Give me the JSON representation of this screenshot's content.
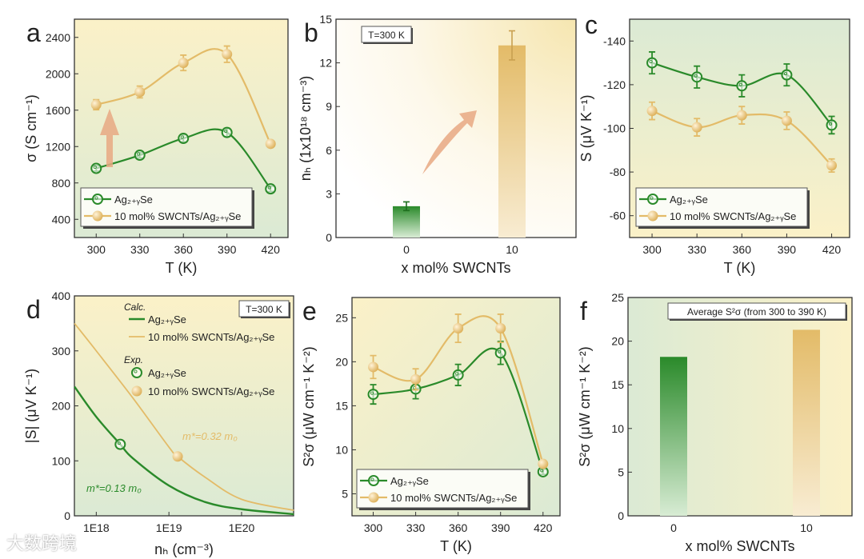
{
  "colors": {
    "green": "#2a8a2a",
    "yellow": "#e3bb68",
    "arrow": "#e8a882"
  },
  "watermark": "大数跨境",
  "chart_data": [
    {
      "panel": "a",
      "type": "line",
      "xlabel": "T (K)",
      "ylabel": "σ (S cm⁻¹)",
      "xlim": [
        285,
        432
      ],
      "ylim": [
        200,
        2600
      ],
      "xticks": [
        300,
        330,
        360,
        390,
        420
      ],
      "yticks": [
        400,
        800,
        1200,
        1600,
        2000,
        2400
      ],
      "x": [
        300,
        330,
        360,
        390,
        420
      ],
      "series": [
        {
          "name": "Ag2+ySe",
          "legend": "Ag₂₊ᵧSe",
          "values": [
            960,
            1105,
            1290,
            1355,
            735
          ],
          "err": [
            30,
            30,
            40,
            45,
            30
          ],
          "style": "open"
        },
        {
          "name": "10 mol% SWCNTs/Ag2+ySe",
          "legend": "10 mol% SWCNTs/Ag₂₊ᵧSe",
          "values": [
            1660,
            1800,
            2120,
            2215,
            1230
          ],
          "err": [
            55,
            65,
            85,
            90,
            25
          ],
          "style": "filled"
        }
      ]
    },
    {
      "panel": "b",
      "type": "bar",
      "xlabel": "x mol% SWCNTs",
      "ylabel": "nₕ (1x10¹⁸ cm⁻³)",
      "ylim": [
        0,
        15
      ],
      "yticks": [
        0,
        3,
        6,
        9,
        12,
        15
      ],
      "categories": [
        "0",
        "10"
      ],
      "values": [
        2.15,
        13.2
      ],
      "err": [
        0.3,
        1.0
      ],
      "annotation": "T=300 K"
    },
    {
      "panel": "c",
      "type": "line",
      "xlabel": "T (K)",
      "ylabel": "S (μV K⁻¹)",
      "xlim": [
        285,
        432
      ],
      "ylim": [
        -50,
        -150
      ],
      "xticks": [
        300,
        330,
        360,
        390,
        420
      ],
      "yticks": [
        -60,
        -80,
        -100,
        -120,
        -140
      ],
      "x": [
        300,
        330,
        360,
        390,
        420
      ],
      "series": [
        {
          "name": "Ag2+ySe",
          "legend": "Ag₂₊ᵧSe",
          "values": [
            -130,
            -123.5,
            -119.5,
            -124.5,
            -101.5
          ],
          "err": [
            5,
            5,
            5,
            5,
            4
          ],
          "style": "open"
        },
        {
          "name": "10 mol% SWCNTs/Ag2+ySe",
          "legend": "10 mol% SWCNTs/Ag₂₊ᵧSe",
          "values": [
            -108,
            -100.5,
            -106,
            -103.5,
            -83
          ],
          "err": [
            4,
            4,
            4,
            4,
            3
          ],
          "style": "filled"
        }
      ]
    },
    {
      "panel": "d",
      "type": "line",
      "xlabel": "nₕ (cm⁻³)",
      "ylabel": "|S| (μV K⁻¹)",
      "xscale": "log",
      "xlim": [
        5e+17,
        5.2e+20
      ],
      "ylim": [
        0,
        400
      ],
      "xticks": [
        "1E18",
        "1E19",
        "1E20"
      ],
      "yticks": [
        0,
        100,
        200,
        300,
        400
      ],
      "annotation": "T=300 K",
      "legend_calc": "Calc.",
      "legend_exp": "Exp.",
      "series": [
        {
          "name": "Ag2+ySe",
          "legend": "Ag₂₊ᵧSe",
          "label": "m*=0.13 m₀",
          "log10n": [
            17.7,
            18,
            18.33,
            18.5,
            19,
            19.5,
            20,
            20.72
          ],
          "values": [
            235,
            180,
            130,
            105,
            55,
            25,
            12,
            3
          ],
          "exp": [
            18.33,
            130
          ],
          "style": "open"
        },
        {
          "name": "10 mol% SWCNTs/Ag2+ySe",
          "legend": "10 mol% SWCNTs/Ag₂₊ᵧSe",
          "label": "m*=0.32 m₀",
          "log10n": [
            17.7,
            18,
            18.5,
            19,
            19.12,
            19.5,
            20,
            20.72
          ],
          "values": [
            350,
            300,
            215,
            125,
            108,
            70,
            30,
            10
          ],
          "exp": [
            19.12,
            108
          ],
          "style": "filled"
        }
      ]
    },
    {
      "panel": "e",
      "type": "line",
      "xlabel": "T (K)",
      "ylabel": "S²σ (μW cm⁻¹ K⁻²)",
      "xlim": [
        285,
        432
      ],
      "ylim": [
        2.5,
        27.3
      ],
      "xticks": [
        300,
        330,
        360,
        390,
        420
      ],
      "yticks": [
        5,
        10,
        15,
        20,
        25
      ],
      "x": [
        300,
        330,
        360,
        390,
        420
      ],
      "series": [
        {
          "name": "Ag2+ySe",
          "legend": "Ag₂₊ᵧSe",
          "values": [
            16.3,
            16.9,
            18.5,
            21,
            7.5
          ],
          "err": [
            1.1,
            1.1,
            1.2,
            1.3,
            0.3
          ],
          "style": "open"
        },
        {
          "name": "10 mol% SWCNTs/Ag2+ySe",
          "legend": "10 mol% SWCNTs/Ag₂₊ᵧSe",
          "values": [
            19.4,
            18,
            23.8,
            23.8,
            8.4
          ],
          "err": [
            1.3,
            1.2,
            1.6,
            1.6,
            0.3
          ],
          "style": "filled"
        }
      ]
    },
    {
      "panel": "f",
      "type": "bar",
      "xlabel": "x mol% SWCNTs",
      "ylabel": "S²σ (μW cm⁻¹ K⁻²)",
      "ylim": [
        0,
        25
      ],
      "yticks": [
        0,
        5,
        10,
        15,
        20,
        25
      ],
      "categories": [
        "0",
        "10"
      ],
      "values": [
        18.2,
        21.3
      ],
      "annotation": "Average S²σ (from 300 to 390 K)"
    }
  ]
}
